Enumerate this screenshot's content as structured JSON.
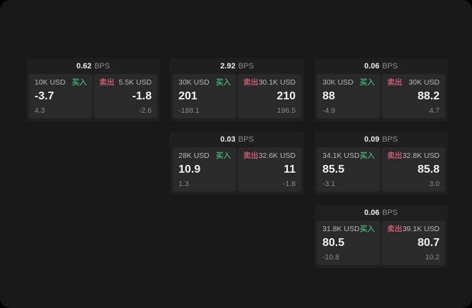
{
  "labels": {
    "bps": "BPS",
    "buy": "买入",
    "sell": "卖出"
  },
  "colors": {
    "app_bg": "#191919",
    "card_bg": "#1f1f20",
    "panel_bg": "#2a2a2b",
    "buy_green": "#3fa86c",
    "sell_red": "#c95a6c"
  },
  "cards": [
    {
      "bps": "0.62",
      "grid": {
        "row": 1,
        "col": 1
      },
      "buy": {
        "amount": "10K USD",
        "price": "-3.7",
        "change": "4.3"
      },
      "sell": {
        "amount": "5.5K USD",
        "price": "-1.8",
        "change": "-2.6"
      }
    },
    {
      "bps": "2.92",
      "grid": {
        "row": 1,
        "col": 2
      },
      "buy": {
        "amount": "30K USD",
        "price": "201",
        "change": "-188.1"
      },
      "sell": {
        "amount": "30.1K USD",
        "price": "210",
        "change": "196.5"
      }
    },
    {
      "bps": "0.06",
      "grid": {
        "row": 1,
        "col": 3
      },
      "buy": {
        "amount": "30K USD",
        "price": "88",
        "change": "-4.9"
      },
      "sell": {
        "amount": "30K USD",
        "price": "88.2",
        "change": "4.7"
      }
    },
    {
      "bps": "0.03",
      "grid": {
        "row": 2,
        "col": 2
      },
      "buy": {
        "amount": "28K USD",
        "price": "10.9",
        "change": "1.3"
      },
      "sell": {
        "amount": "32.6K USD",
        "price": "11",
        "change": "-1.8"
      }
    },
    {
      "bps": "0.09",
      "grid": {
        "row": 2,
        "col": 3
      },
      "buy": {
        "amount": "34.1K USD",
        "price": "85.5",
        "change": "-3.1"
      },
      "sell": {
        "amount": "32.8K USD",
        "price": "85.8",
        "change": "3.0"
      }
    },
    {
      "bps": "0.06",
      "grid": {
        "row": 3,
        "col": 3
      },
      "buy": {
        "amount": "31.8K USD",
        "price": "80.5",
        "change": "-10.8"
      },
      "sell": {
        "amount": "39.1K USD",
        "price": "80.7",
        "change": "10.2"
      }
    }
  ]
}
